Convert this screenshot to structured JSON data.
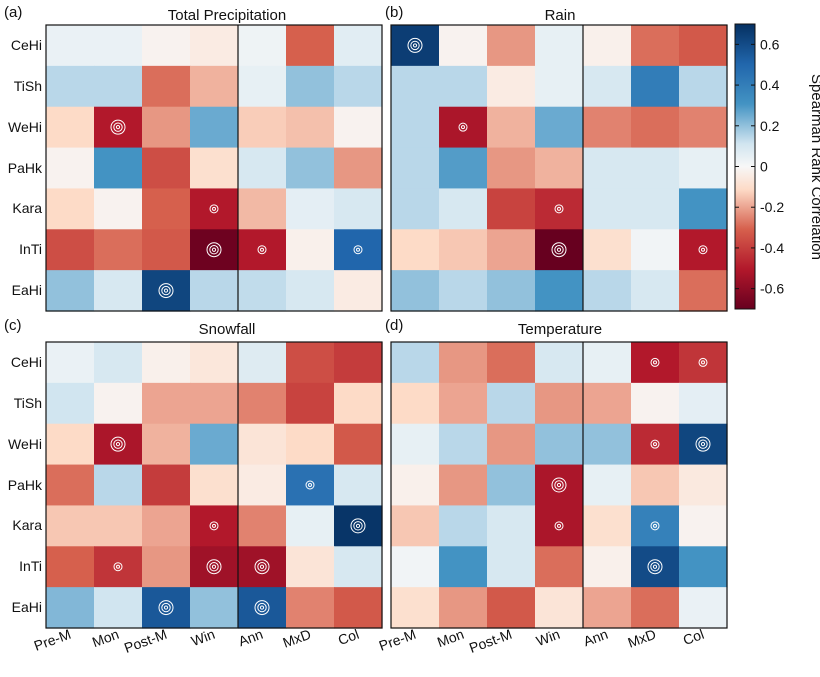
{
  "chart_data": {
    "type": "heatmap",
    "colorbar": {
      "label": "Spearman Rank Correlation",
      "vmin": -0.7,
      "vmax": 0.7,
      "ticks": [
        -0.6,
        -0.4,
        -0.2,
        0,
        0.2,
        0.4,
        0.6
      ],
      "tick_labels": [
        "-0.6",
        "-0.4",
        "-0.2",
        "0",
        "0.2",
        "0.4",
        "0.6"
      ]
    },
    "columns": [
      "Pre-M",
      "Mon",
      "Post-M",
      "Win",
      "Ann",
      "MxD",
      "Col"
    ],
    "rows": [
      "CeHi",
      "TiSh",
      "WeHi",
      "PaHk",
      "Kara",
      "InTi",
      "EaHi"
    ],
    "marker_note": "single ring = significant, double ring = highly significant",
    "panels": [
      {
        "letter": "(a)",
        "title": "Total Precipitation",
        "values": [
          [
            0.04,
            0.04,
            -0.02,
            -0.05,
            0.03,
            -0.3,
            0.07
          ],
          [
            0.15,
            0.15,
            -0.28,
            -0.18,
            0.05,
            0.2,
            0.15
          ],
          [
            -0.12,
            -0.5,
            -0.22,
            0.25,
            -0.14,
            -0.16,
            -0.02
          ],
          [
            -0.02,
            0.3,
            -0.35,
            -0.1,
            0.1,
            0.2,
            -0.22
          ],
          [
            -0.12,
            -0.02,
            -0.3,
            -0.5,
            -0.17,
            0.06,
            0.1
          ],
          [
            -0.35,
            -0.28,
            -0.32,
            -0.68,
            -0.5,
            -0.03,
            0.5
          ],
          [
            0.2,
            0.1,
            0.62,
            0.15,
            0.14,
            0.1,
            -0.05
          ]
        ],
        "markers": [
          [
            0,
            0,
            0,
            0,
            0,
            0,
            0
          ],
          [
            0,
            0,
            0,
            0,
            0,
            0,
            0
          ],
          [
            0,
            2,
            0,
            0,
            0,
            0,
            0
          ],
          [
            0,
            0,
            0,
            0,
            0,
            0,
            0
          ],
          [
            0,
            0,
            0,
            1,
            0,
            0,
            0
          ],
          [
            0,
            0,
            0,
            2,
            1,
            0,
            1
          ],
          [
            0,
            0,
            2,
            0,
            0,
            0,
            0
          ]
        ]
      },
      {
        "letter": "(b)",
        "title": "Rain",
        "values": [
          [
            0.65,
            -0.02,
            -0.22,
            0.05,
            -0.03,
            -0.28,
            -0.32
          ],
          [
            0.15,
            0.15,
            -0.05,
            0.05,
            0.1,
            0.4,
            0.15
          ],
          [
            0.15,
            -0.52,
            -0.18,
            0.25,
            -0.25,
            -0.28,
            -0.25
          ],
          [
            0.15,
            0.28,
            -0.22,
            -0.18,
            0.1,
            0.1,
            0.05
          ],
          [
            0.15,
            0.1,
            -0.38,
            -0.45,
            0.1,
            0.1,
            0.3
          ],
          [
            -0.12,
            -0.15,
            -0.2,
            -0.7,
            -0.1,
            0.02,
            -0.5
          ],
          [
            0.2,
            0.15,
            0.2,
            0.3,
            0.15,
            0.1,
            -0.28
          ]
        ],
        "markers": [
          [
            2,
            0,
            0,
            0,
            0,
            0,
            0
          ],
          [
            0,
            0,
            0,
            0,
            0,
            0,
            0
          ],
          [
            0,
            1,
            0,
            0,
            0,
            0,
            0
          ],
          [
            0,
            0,
            0,
            0,
            0,
            0,
            0
          ],
          [
            0,
            0,
            0,
            1,
            0,
            0,
            0
          ],
          [
            0,
            0,
            0,
            2,
            0,
            0,
            1
          ],
          [
            0,
            0,
            0,
            0,
            0,
            0,
            0
          ]
        ]
      },
      {
        "letter": "(c)",
        "title": "Snowfall",
        "values": [
          [
            0.04,
            0.1,
            -0.03,
            -0.07,
            0.08,
            -0.35,
            -0.4
          ],
          [
            0.12,
            -0.02,
            -0.2,
            -0.2,
            -0.25,
            -0.38,
            -0.12
          ],
          [
            -0.12,
            -0.52,
            -0.18,
            0.25,
            -0.08,
            -0.12,
            -0.32
          ],
          [
            -0.28,
            0.15,
            -0.4,
            -0.1,
            -0.05,
            0.45,
            0.1
          ],
          [
            -0.15,
            -0.15,
            -0.2,
            -0.5,
            -0.25,
            0.05,
            0.68
          ],
          [
            -0.3,
            -0.42,
            -0.22,
            -0.55,
            -0.55,
            -0.08,
            0.1
          ],
          [
            0.22,
            0.12,
            0.55,
            0.2,
            0.55,
            -0.25,
            -0.32
          ]
        ],
        "markers": [
          [
            0,
            0,
            0,
            0,
            0,
            0,
            0
          ],
          [
            0,
            0,
            0,
            0,
            0,
            0,
            0
          ],
          [
            0,
            2,
            0,
            0,
            0,
            0,
            0
          ],
          [
            0,
            0,
            0,
            0,
            0,
            1,
            0
          ],
          [
            0,
            0,
            0,
            1,
            0,
            0,
            2
          ],
          [
            0,
            1,
            0,
            2,
            2,
            0,
            0
          ],
          [
            0,
            0,
            2,
            0,
            2,
            0,
            0
          ]
        ]
      },
      {
        "letter": "(d)",
        "title": "Temperature",
        "values": [
          [
            0.15,
            -0.22,
            -0.28,
            0.1,
            0.05,
            -0.5,
            -0.42
          ],
          [
            -0.12,
            -0.2,
            0.15,
            -0.22,
            -0.2,
            -0.02,
            0.06
          ],
          [
            0.05,
            0.15,
            -0.22,
            0.2,
            0.2,
            -0.45,
            0.62
          ],
          [
            -0.03,
            -0.22,
            0.2,
            -0.52,
            0.05,
            -0.15,
            -0.06
          ],
          [
            -0.15,
            0.15,
            0.1,
            -0.52,
            -0.1,
            0.38,
            -0.02
          ],
          [
            0.02,
            0.3,
            0.1,
            -0.28,
            -0.03,
            0.6,
            0.3
          ],
          [
            -0.1,
            -0.22,
            -0.32,
            -0.08,
            -0.2,
            -0.28,
            0.04
          ]
        ],
        "markers": [
          [
            0,
            0,
            0,
            0,
            0,
            1,
            1
          ],
          [
            0,
            0,
            0,
            0,
            0,
            0,
            0
          ],
          [
            0,
            0,
            0,
            0,
            0,
            1,
            2
          ],
          [
            0,
            0,
            0,
            2,
            0,
            0,
            0
          ],
          [
            0,
            0,
            0,
            1,
            0,
            1,
            0
          ],
          [
            0,
            0,
            0,
            0,
            0,
            2,
            0
          ],
          [
            0,
            0,
            0,
            0,
            0,
            0,
            0
          ]
        ]
      }
    ]
  }
}
